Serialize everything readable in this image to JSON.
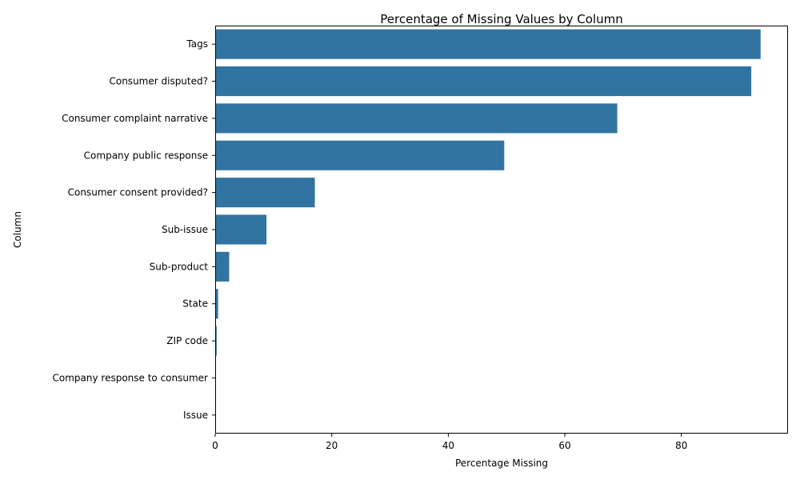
{
  "chart_data": {
    "type": "bar",
    "orientation": "horizontal",
    "title": "Percentage of Missing Values by Column",
    "xlabel": "Percentage Missing",
    "ylabel": "Column",
    "categories": [
      "Tags",
      "Consumer disputed?",
      "Consumer complaint narrative",
      "Company public response",
      "Consumer consent provided?",
      "Sub-issue",
      "Sub-product",
      "State",
      "ZIP code",
      "Company response to consumer",
      "Issue"
    ],
    "values": [
      93.6,
      92.0,
      69.0,
      49.6,
      17.1,
      8.8,
      2.4,
      0.5,
      0.25,
      0.0,
      0.0
    ],
    "xlim": [
      0,
      98.3
    ],
    "xticks": [
      0,
      20,
      40,
      60,
      80
    ],
    "grid": false,
    "bar_color": "#3274a1"
  }
}
